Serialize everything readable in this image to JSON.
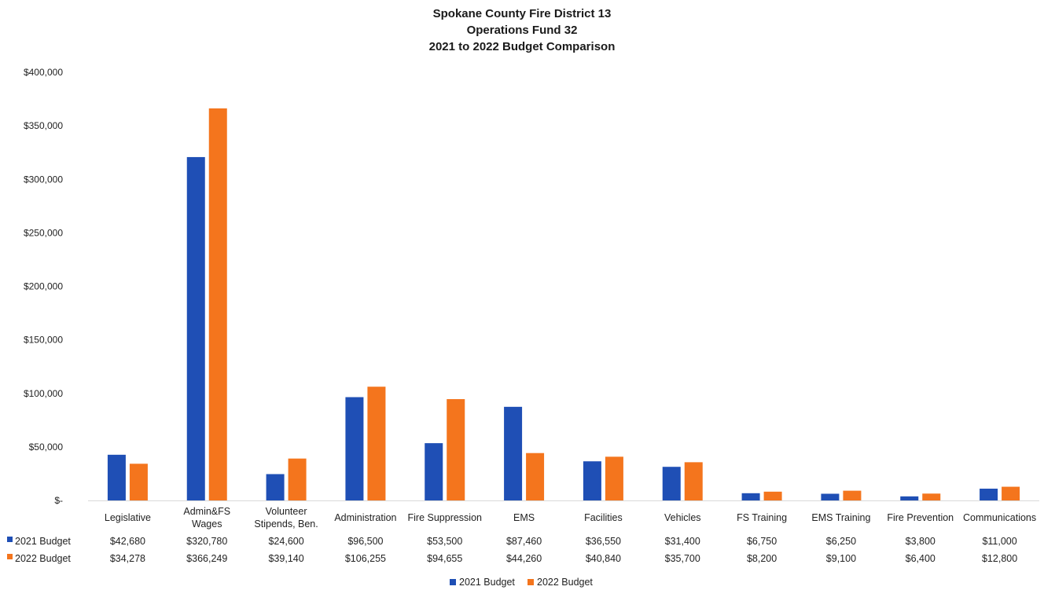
{
  "chart_data": {
    "type": "bar",
    "title": [
      "Spokane County Fire District 13",
      "Operations Fund 32",
      "2021 to 2022 Budget Comparison"
    ],
    "categories": [
      [
        "Legislative"
      ],
      [
        "Admin&FS",
        "Wages"
      ],
      [
        "Volunteer",
        "Stipends, Ben."
      ],
      [
        "Administration"
      ],
      [
        "Fire Suppression"
      ],
      [
        "EMS"
      ],
      [
        "Facilities"
      ],
      [
        "Vehicles"
      ],
      [
        "FS Training"
      ],
      [
        "EMS Training"
      ],
      [
        "Fire Prevention"
      ],
      [
        "Communications"
      ]
    ],
    "series": [
      {
        "name": "2021 Budget",
        "color": "#1f4fb5",
        "values": [
          42680,
          320780,
          24600,
          96500,
          53500,
          87460,
          36550,
          31400,
          6750,
          6250,
          3800,
          11000
        ],
        "labels": [
          "$42,680",
          "$320,780",
          "$24,600",
          "$96,500",
          "$53,500",
          "$87,460",
          "$36,550",
          "$31,400",
          "$6,750",
          "$6,250",
          "$3,800",
          "$11,000"
        ]
      },
      {
        "name": "2022 Budget",
        "color": "#f4751d",
        "values": [
          34278,
          366249,
          39140,
          106255,
          94655,
          44260,
          40840,
          35700,
          8200,
          9100,
          6400,
          12800
        ],
        "labels": [
          "$34,278",
          "$366,249",
          "$39,140",
          "$106,255",
          "$94,655",
          "$44,260",
          "$40,840",
          "$35,700",
          "$8,200",
          "$9,100",
          "$6,400",
          "$12,800"
        ]
      }
    ],
    "ylim": [
      0,
      400000
    ],
    "yticks": [
      0,
      50000,
      100000,
      150000,
      200000,
      250000,
      300000,
      350000,
      400000
    ],
    "ytick_labels": [
      "$-",
      "$50,000",
      "$100,000",
      "$150,000",
      "$200,000",
      "$250,000",
      "$300,000",
      "$350,000",
      "$400,000"
    ],
    "grid": false,
    "data_table": true,
    "legend": "bottom-center"
  }
}
